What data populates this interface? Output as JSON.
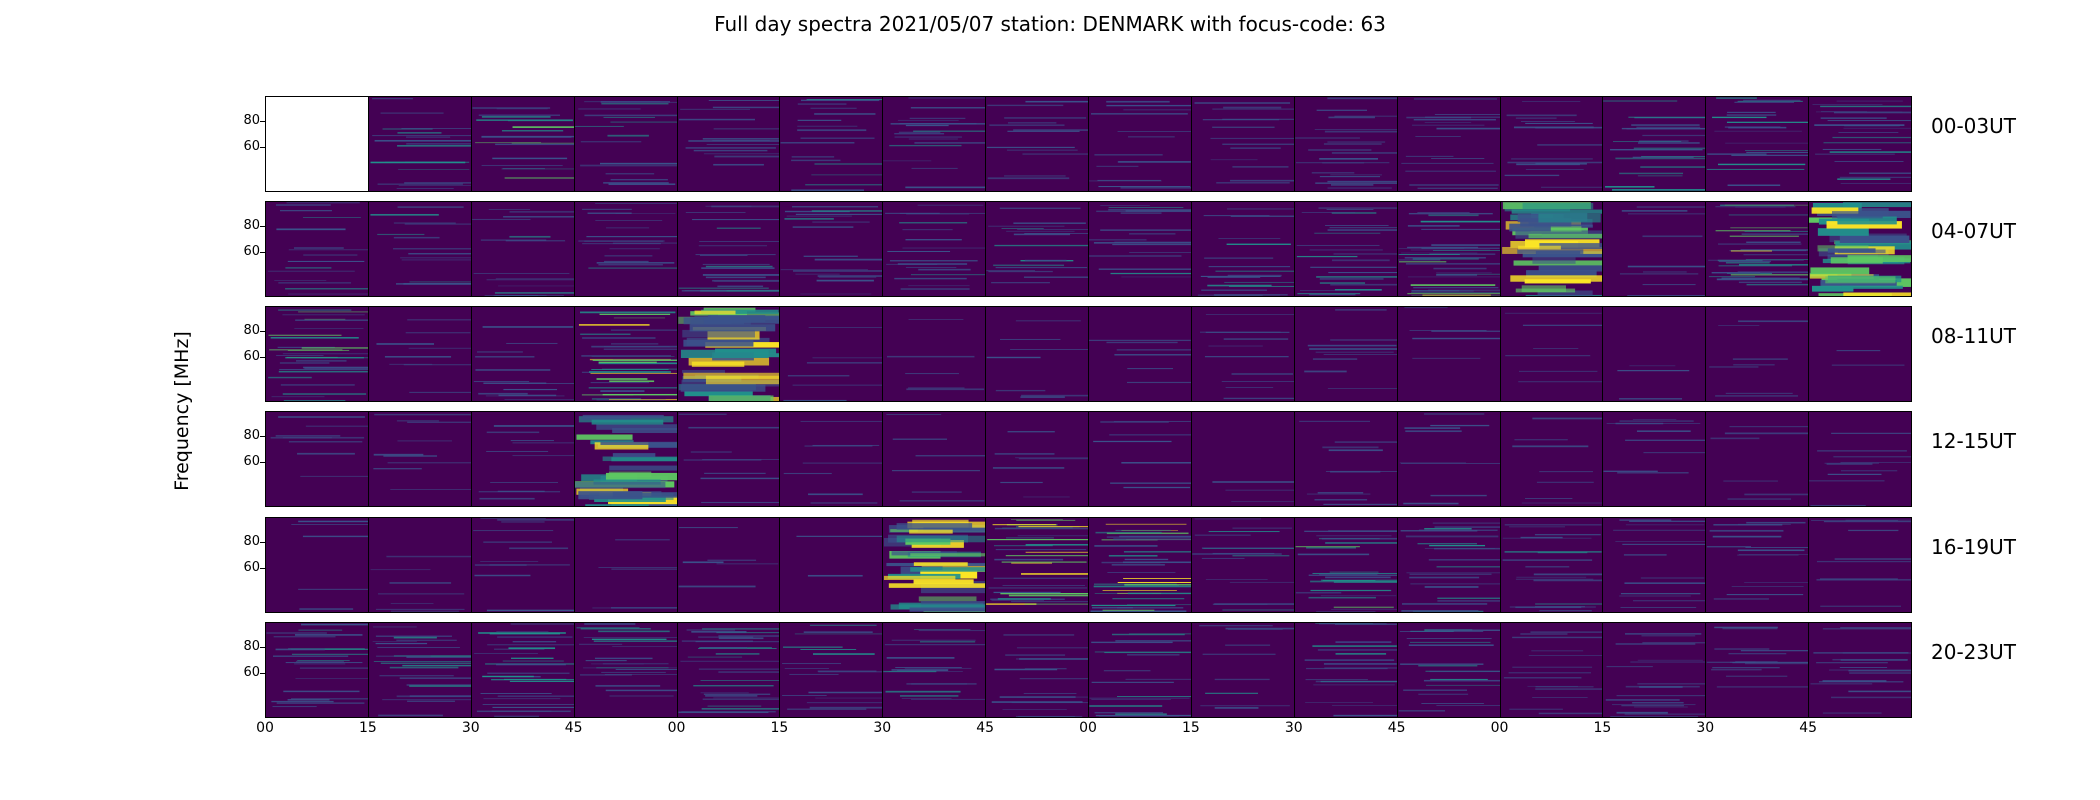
{
  "chart_data": {
    "type": "heatmap",
    "title": "Full day spectra 2021/05/07 station: DENMARK with focus-code: 63",
    "ylabel": "Frequency [MHz]",
    "yticks": [
      "80",
      "60"
    ],
    "xticks": [
      "00",
      "15",
      "30",
      "45",
      "00",
      "15",
      "30",
      "45",
      "00",
      "15",
      "30",
      "45",
      "00",
      "15",
      "30",
      "45"
    ],
    "row_labels": [
      "00-03UT",
      "04-07UT",
      "08-11UT",
      "12-15UT",
      "16-19UT",
      "20-23UT"
    ],
    "colormap": [
      "#440154",
      "#3b528b",
      "#21918c",
      "#5ec962",
      "#fde725"
    ],
    "panels_per_row": 16,
    "panel_activity": [
      [
        0,
        0.5,
        0.6,
        0.5,
        0.4,
        0.4,
        0.4,
        0.3,
        0.3,
        0.3,
        0.3,
        0.4,
        0.3,
        0.5,
        0.5,
        0.5
      ],
      [
        0.4,
        0.4,
        0.4,
        0.4,
        0.4,
        0.4,
        0.4,
        0.4,
        0.4,
        0.4,
        0.4,
        0.8,
        0.95,
        0.3,
        0.8,
        0.95
      ],
      [
        0.7,
        0.2,
        0.3,
        0.85,
        0.9,
        0.1,
        0.1,
        0.1,
        0.1,
        0.1,
        0.1,
        0.1,
        0.1,
        0.1,
        0.1,
        0.1
      ],
      [
        0.1,
        0.1,
        0.1,
        0.9,
        0.1,
        0.1,
        0.1,
        0.1,
        0.1,
        0.1,
        0.1,
        0.1,
        0.1,
        0.1,
        0.1,
        0.1
      ],
      [
        0.1,
        0.1,
        0.1,
        0.1,
        0.1,
        0.1,
        0.95,
        0.8,
        0.85,
        0.4,
        0.6,
        0.5,
        0.4,
        0.3,
        0.3,
        0.3
      ],
      [
        0.4,
        0.5,
        0.5,
        0.5,
        0.5,
        0.4,
        0.4,
        0.3,
        0.4,
        0.4,
        0.5,
        0.5,
        0.3,
        0.3,
        0.3,
        0.3
      ]
    ]
  }
}
